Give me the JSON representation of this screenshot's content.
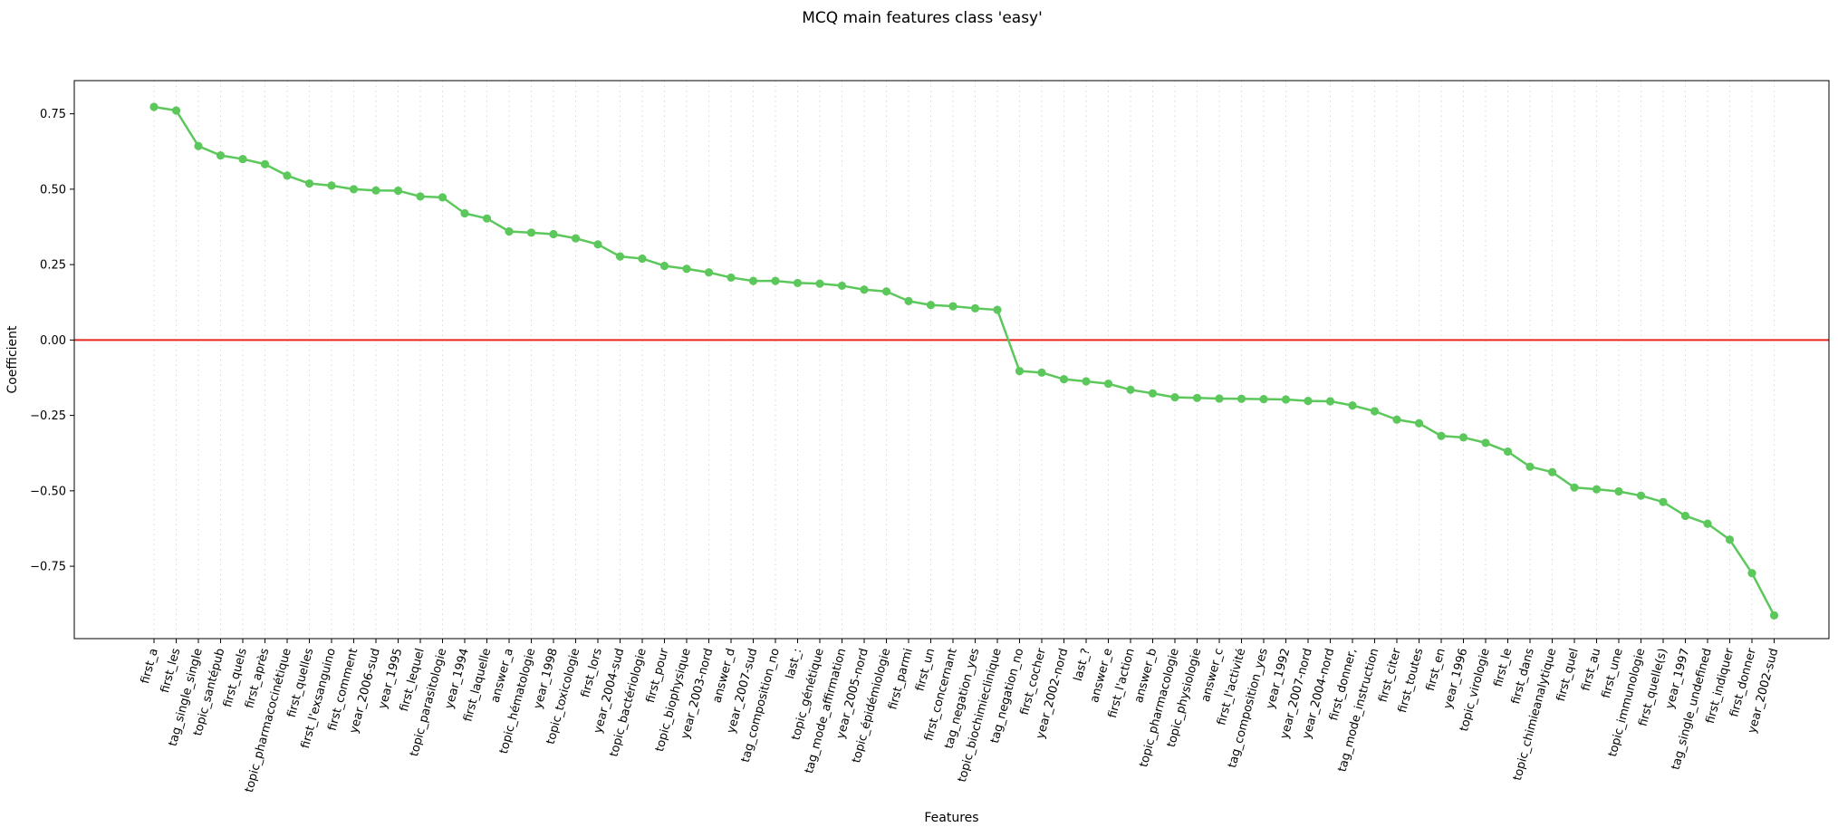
{
  "chart_data": {
    "type": "line",
    "title": "MCQ main features class 'easy'",
    "xlabel": "Features",
    "ylabel": "Coefficient",
    "ylim": [
      -0.99,
      0.86
    ],
    "yticks": [
      0.75,
      0.5,
      0.25,
      0.0,
      -0.25,
      -0.5,
      -0.75
    ],
    "ytick_labels": [
      "0.75",
      "0.50",
      "0.25",
      "0.00",
      "−0.25",
      "−0.50",
      "−0.75"
    ],
    "grid": "vertical dotted",
    "reference_line": {
      "y": 0,
      "color": "#e8261f"
    },
    "series": [
      {
        "color": "#5cc85c",
        "categories": [
          "first_a",
          "first_les",
          "tag_single_single",
          "topic_santépub",
          "first_quels",
          "first_après",
          "topic_pharmacocinétique",
          "first_quelles",
          "first_l'exsanguino",
          "first_comment",
          "year_2006-sud",
          "year_1995",
          "first_lequel",
          "topic_parasitologie",
          "year_1994",
          "first_laquelle",
          "answer_a",
          "topic_hématologie",
          "year_1998",
          "topic_toxicologie",
          "first_lors",
          "year_2004-sud",
          "topic_bactériologie",
          "first_pour",
          "topic_biophysique",
          "year_2003-nord",
          "answer_d",
          "year_2007-sud",
          "tag_composition_no",
          "last_:",
          "topic_génétique",
          "tag_mode_affirmation",
          "year_2005-nord",
          "topic_épidémiologie",
          "first_parmi",
          "first_un",
          "first_concernant",
          "tag_negation_yes",
          "topic_biochimieclinique",
          "tag_negation_no",
          "first_cocher",
          "year_2002-nord",
          "last_?",
          "answer_e",
          "first_l'action",
          "answer_b",
          "topic_pharmacologie",
          "topic_physiologie",
          "answer_c",
          "first_l'activité",
          "tag_composition_yes",
          "year_1992",
          "year_2007-nord",
          "year_2004-nord",
          "first_donner,",
          "tag_mode_instruction",
          "first_citer",
          "first_toutes",
          "first_en",
          "year_1996",
          "topic_virologie",
          "first_le",
          "first_dans",
          "topic_chimieanalytique",
          "first_quel",
          "first_au",
          "first_une",
          "topic_immunologie",
          "first_quelle(s)",
          "year_1997",
          "tag_single_undefined",
          "first_indiquer",
          "first_donner",
          "year_2002-sud"
        ],
        "values": [
          0.773,
          0.761,
          0.643,
          0.612,
          0.6,
          0.583,
          0.545,
          0.519,
          0.512,
          0.5,
          0.496,
          0.495,
          0.476,
          0.473,
          0.42,
          0.403,
          0.36,
          0.356,
          0.351,
          0.337,
          0.317,
          0.277,
          0.27,
          0.246,
          0.236,
          0.224,
          0.207,
          0.196,
          0.196,
          0.189,
          0.187,
          0.18,
          0.167,
          0.161,
          0.129,
          0.116,
          0.112,
          0.105,
          0.1,
          -0.103,
          -0.108,
          -0.13,
          -0.137,
          -0.145,
          -0.165,
          -0.177,
          -0.19,
          -0.192,
          -0.194,
          -0.195,
          -0.196,
          -0.197,
          -0.202,
          -0.203,
          -0.217,
          -0.236,
          -0.264,
          -0.276,
          -0.318,
          -0.323,
          -0.341,
          -0.37,
          -0.42,
          -0.438,
          -0.489,
          -0.495,
          -0.502,
          -0.516,
          -0.537,
          -0.583,
          -0.609,
          -0.662,
          -0.773,
          -0.913
        ]
      }
    ]
  }
}
